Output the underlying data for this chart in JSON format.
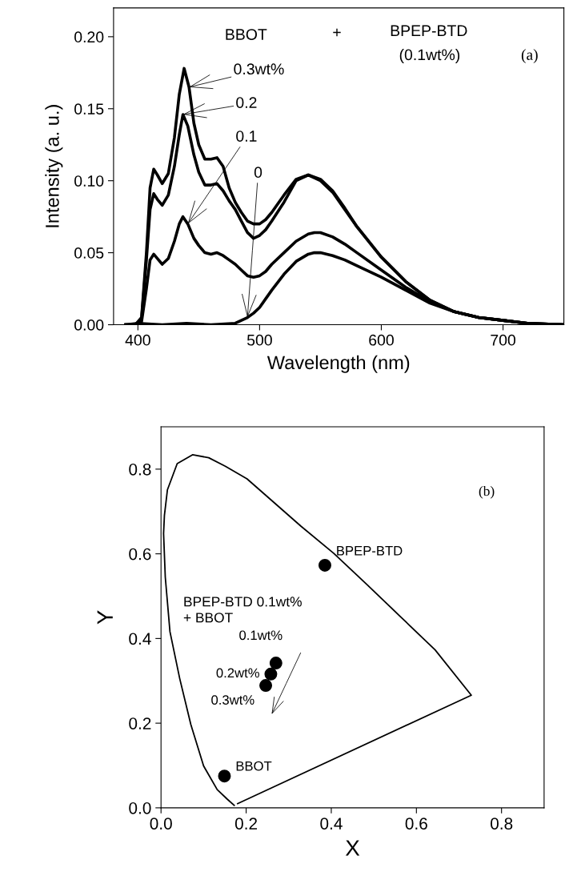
{
  "chart_data": [
    {
      "type": "line",
      "xlabel": "Wavelength (nm)",
      "ylabel": "Intensity (a. u.)",
      "xlim": [
        380,
        750
      ],
      "xticks": [
        400,
        500,
        600,
        700
      ],
      "ylim": [
        0,
        0.22
      ],
      "yticks": [
        {
          "value": 0,
          "label": "0.00"
        },
        {
          "value": 0.05,
          "label": "0.05"
        },
        {
          "value": 0.1,
          "label": "0.10"
        },
        {
          "value": 0.15,
          "label": "0.15"
        },
        {
          "value": 0.2,
          "label": "0.20"
        }
      ],
      "marker": "none",
      "line_style": "solid",
      "series": [
        {
          "color": "#000000",
          "x": [
            390,
            398,
            403,
            407,
            410,
            413,
            416,
            420,
            425,
            430,
            434,
            438,
            442,
            446,
            450,
            455,
            460,
            465,
            470,
            475,
            480,
            485,
            490,
            495,
            500,
            505,
            510,
            520,
            530,
            540,
            550,
            560,
            570,
            580,
            600,
            620,
            640,
            660,
            680,
            700,
            720,
            750
          ],
          "values": [
            0,
            0,
            0.005,
            0.05,
            0.095,
            0.108,
            0.104,
            0.098,
            0.105,
            0.13,
            0.16,
            0.178,
            0.165,
            0.14,
            0.125,
            0.115,
            0.115,
            0.116,
            0.11,
            0.095,
            0.085,
            0.078,
            0.072,
            0.07,
            0.07,
            0.073,
            0.078,
            0.09,
            0.101,
            0.104,
            0.1,
            0.092,
            0.08,
            0.068,
            0.047,
            0.03,
            0.017,
            0.009,
            0.005,
            0.003,
            0.001,
            0
          ]
        },
        {
          "color": "#000000",
          "x": [
            390,
            398,
            403,
            407,
            410,
            413,
            416,
            420,
            425,
            430,
            434,
            437,
            441,
            446,
            450,
            455,
            460,
            465,
            470,
            475,
            480,
            485,
            490,
            495,
            500,
            505,
            510,
            520,
            530,
            540,
            550,
            560,
            570,
            580,
            600,
            620,
            640,
            660,
            680,
            700,
            720,
            750
          ],
          "values": [
            0,
            0,
            0.004,
            0.045,
            0.08,
            0.091,
            0.087,
            0.083,
            0.09,
            0.11,
            0.132,
            0.146,
            0.138,
            0.118,
            0.106,
            0.097,
            0.097,
            0.098,
            0.093,
            0.086,
            0.08,
            0.072,
            0.064,
            0.06,
            0.062,
            0.066,
            0.072,
            0.085,
            0.1,
            0.104,
            0.101,
            0.093,
            0.081,
            0.068,
            0.047,
            0.03,
            0.017,
            0.009,
            0.005,
            0.003,
            0.001,
            0
          ]
        },
        {
          "color": "#000000",
          "x": [
            390,
            398,
            403,
            407,
            410,
            413,
            416,
            420,
            425,
            430,
            434,
            437,
            441,
            446,
            450,
            455,
            460,
            465,
            470,
            475,
            480,
            485,
            490,
            495,
            500,
            505,
            510,
            520,
            530,
            540,
            545,
            550,
            560,
            570,
            580,
            600,
            620,
            640,
            660,
            680,
            700,
            720,
            750
          ],
          "values": [
            0,
            0,
            0.002,
            0.025,
            0.045,
            0.049,
            0.046,
            0.042,
            0.046,
            0.058,
            0.07,
            0.075,
            0.07,
            0.06,
            0.055,
            0.05,
            0.049,
            0.05,
            0.048,
            0.045,
            0.042,
            0.038,
            0.034,
            0.033,
            0.034,
            0.037,
            0.042,
            0.05,
            0.058,
            0.063,
            0.064,
            0.064,
            0.061,
            0.056,
            0.05,
            0.038,
            0.026,
            0.016,
            0.009,
            0.005,
            0.003,
            0.001,
            0
          ]
        },
        {
          "color": "#000000",
          "x": [
            390,
            400,
            420,
            440,
            460,
            480,
            485,
            490,
            495,
            500,
            505,
            510,
            520,
            530,
            540,
            545,
            550,
            560,
            570,
            580,
            600,
            620,
            640,
            660,
            680,
            700,
            720,
            750
          ],
          "values": [
            0,
            0.001,
            0,
            0.001,
            0,
            0.001,
            0.003,
            0.005,
            0.008,
            0.012,
            0.018,
            0.024,
            0.035,
            0.044,
            0.049,
            0.05,
            0.05,
            0.048,
            0.045,
            0.041,
            0.033,
            0.024,
            0.015,
            0.009,
            0.005,
            0.003,
            0.001,
            0
          ]
        }
      ],
      "annotations": [
        "BBOT",
        "+",
        "BPEP-BTD",
        "(0.1wt%)",
        "(a)",
        {
          "text": "0.3wt%",
          "x": 442,
          "y": 0.165
        },
        {
          "text": "0.2",
          "x": 437,
          "y": 0.146
        },
        {
          "text": "0.1",
          "x": 441,
          "y": 0.07
        },
        {
          "text": "0",
          "x": 490,
          "y": 0.005
        }
      ]
    },
    {
      "type": "line",
      "xlabel": "X",
      "ylabel": "Y",
      "xlim": [
        0,
        0.9
      ],
      "xticks": [
        {
          "value": 0,
          "label": "0.0"
        },
        {
          "value": 0.2,
          "label": "0.2"
        },
        {
          "value": 0.4,
          "label": "0.4"
        },
        {
          "value": 0.6,
          "label": "0.6"
        },
        {
          "value": 0.8,
          "label": "0.8"
        }
      ],
      "ylim": [
        0,
        0.9
      ],
      "yticks": [
        {
          "value": 0,
          "label": "0.0"
        },
        {
          "value": 0.2,
          "label": "0.2"
        },
        {
          "value": 0.4,
          "label": "0.4"
        },
        {
          "value": 0.6,
          "label": "0.6"
        },
        {
          "value": 0.8,
          "label": "0.8"
        }
      ],
      "series": [
        {
          "type": "line",
          "color": "#000000",
          "marker": "none",
          "line_style": "solid",
          "x": [
            0.172,
            0.155,
            0.132,
            0.1,
            0.07,
            0.044,
            0.021,
            0.01,
            0.006,
            0.008,
            0.015,
            0.038,
            0.074,
            0.112,
            0.151,
            0.202,
            0.261,
            0.329,
            0.406,
            0.483,
            0.559,
            0.644,
            0.729,
            0.18
          ],
          "values": [
            0.006,
            0.021,
            0.043,
            0.099,
            0.197,
            0.305,
            0.416,
            0.545,
            0.648,
            0.691,
            0.751,
            0.813,
            0.834,
            0.827,
            0.807,
            0.777,
            0.725,
            0.665,
            0.601,
            0.528,
            0.455,
            0.373,
            0.266,
            0.01
          ]
        },
        {
          "type": "scatter",
          "color": "#000000",
          "marker": "circle",
          "x": [
            0.149,
            0.246,
            0.258,
            0.27,
            0.385
          ],
          "values": [
            0.075,
            0.289,
            0.316,
            0.342,
            0.573
          ]
        }
      ],
      "annotations": [
        "BPEP-BTD 0.1wt%\n+ BBOT",
        "(b)",
        {
          "text": "BBOT",
          "x": 0.149,
          "y": 0.075
        },
        {
          "text": "0.3wt%",
          "x": 0.246,
          "y": 0.289
        },
        {
          "text": "0.2wt%",
          "x": 0.258,
          "y": 0.316
        },
        {
          "text": "0.1wt%",
          "x": 0.27,
          "y": 0.342
        },
        {
          "text": "BPEP-BTD",
          "x": 0.385,
          "y": 0.573
        }
      ]
    }
  ]
}
